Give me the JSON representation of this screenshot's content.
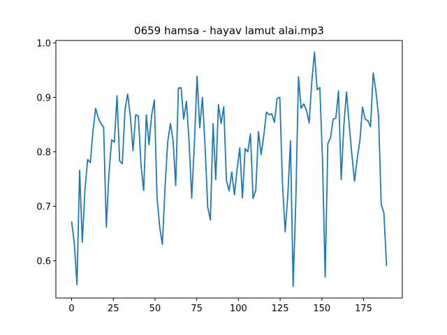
{
  "chart_data": {
    "type": "line",
    "title": "0659 hamsa - hayav lamut alai.mp3",
    "x": [
      0,
      1.6,
      3.2,
      4.8,
      6.4,
      8,
      9.6,
      11.2,
      12.8,
      14.4,
      16,
      17.6,
      19.2,
      20.8,
      22.4,
      24,
      25.6,
      27.2,
      28.8,
      30.4,
      32,
      33.6,
      35.2,
      36.8,
      38.4,
      40,
      41.6,
      43.2,
      44.8,
      46.4,
      48,
      49.6,
      51.2,
      52.8,
      54.4,
      56,
      57.6,
      59.2,
      60.8,
      62.4,
      64,
      65.6,
      67.2,
      68.8,
      70.4,
      72,
      73.6,
      75.2,
      76.8,
      78.4,
      80,
      81.6,
      83.2,
      84.8,
      86.4,
      88,
      89.6,
      91.2,
      92.8,
      94.4,
      96,
      97.6,
      99.2,
      100.8,
      102.4,
      104,
      105.6,
      107.2,
      108.8,
      110.4,
      112,
      113.6,
      115.2,
      116.8,
      118.4,
      120,
      121.6,
      123.2,
      124.8,
      126.4,
      128,
      129.6,
      131.2,
      132.8,
      134.4,
      136,
      137.6,
      139.2,
      140.8,
      142.4,
      144,
      145.6,
      147.2,
      148.8,
      150.4,
      152,
      153.6,
      155.2,
      156.8,
      158.4,
      160,
      161.6,
      163.2,
      164.8,
      166.4,
      168,
      169.6,
      171.2,
      172.8,
      174.4,
      176,
      177.6,
      179.2,
      180.8,
      182.4,
      184,
      185.6,
      187.2,
      188.8
    ],
    "series": [
      {
        "color": "#1f77b4",
        "values": [
          0.672,
          0.632,
          0.556,
          0.766,
          0.634,
          0.73,
          0.786,
          0.78,
          0.838,
          0.88,
          0.862,
          0.852,
          0.845,
          0.662,
          0.76,
          0.822,
          0.818,
          0.903,
          0.783,
          0.778,
          0.878,
          0.906,
          0.866,
          0.802,
          0.868,
          0.866,
          0.775,
          0.729,
          0.868,
          0.813,
          0.868,
          0.895,
          0.716,
          0.662,
          0.63,
          0.735,
          0.818,
          0.852,
          0.822,
          0.738,
          0.917,
          0.918,
          0.86,
          0.893,
          0.82,
          0.715,
          0.815,
          0.939,
          0.844,
          0.9,
          0.81,
          0.698,
          0.675,
          0.852,
          0.749,
          0.887,
          0.852,
          0.883,
          0.748,
          0.728,
          0.763,
          0.721,
          0.768,
          0.807,
          0.715,
          0.806,
          0.8,
          0.833,
          0.714,
          0.73,
          0.837,
          0.795,
          0.83,
          0.873,
          0.868,
          0.87,
          0.854,
          0.898,
          0.9,
          0.742,
          0.653,
          0.72,
          0.82,
          0.553,
          0.71,
          0.938,
          0.88,
          0.888,
          0.876,
          0.853,
          0.93,
          0.983,
          0.914,
          0.918,
          0.786,
          0.57,
          0.815,
          0.826,
          0.86,
          0.862,
          0.912,
          0.749,
          0.848,
          0.91,
          0.85,
          0.795,
          0.746,
          0.787,
          0.82,
          0.882,
          0.86,
          0.857,
          0.846,
          0.945,
          0.912,
          0.866,
          0.703,
          0.688,
          0.59
        ]
      }
    ],
    "xlim": [
      -9.44,
      198.24
    ],
    "ylim": [
      0.5315,
      1.0045
    ],
    "xticks": [
      0,
      25,
      50,
      75,
      100,
      125,
      150,
      175
    ],
    "yticks": [
      0.6,
      0.7,
      0.8,
      0.9,
      {
        "value": 1,
        "label": "1.0"
      }
    ]
  }
}
